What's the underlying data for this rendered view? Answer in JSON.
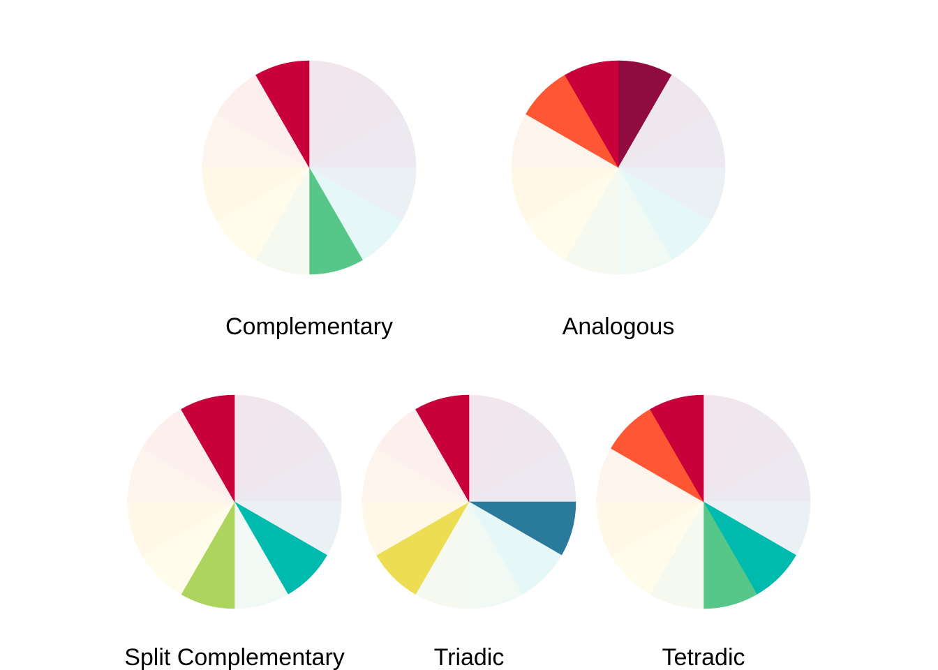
{
  "chart_data": [
    {
      "type": "pie",
      "label": "Complementary",
      "start": "top",
      "direction": "clockwise",
      "slices": [
        {
          "value": 1,
          "color": "#F1E6EC"
        },
        {
          "value": 1,
          "color": "#EEE8EE"
        },
        {
          "value": 1,
          "color": "#ECEAF0"
        },
        {
          "value": 1,
          "color": "#EAF0F3"
        },
        {
          "value": 1,
          "color": "#E6F7F7"
        },
        {
          "value": 1,
          "color": "#56C788"
        },
        {
          "value": 1,
          "color": "#F5F9EF"
        },
        {
          "value": 1,
          "color": "#FFFCEC"
        },
        {
          "value": 1,
          "color": "#FFF8E6"
        },
        {
          "value": 1,
          "color": "#FEF4EE"
        },
        {
          "value": 1,
          "color": "#FCEFEE"
        },
        {
          "value": 1,
          "color": "#C8013A"
        }
      ]
    },
    {
      "type": "pie",
      "label": "Analogous",
      "start": "top",
      "direction": "clockwise",
      "slices": [
        {
          "value": 1,
          "color": "#900C3F"
        },
        {
          "value": 1,
          "color": "#EEE8EE"
        },
        {
          "value": 1,
          "color": "#ECEAF0"
        },
        {
          "value": 1,
          "color": "#EAF0F3"
        },
        {
          "value": 1,
          "color": "#E6F7F7"
        },
        {
          "value": 1,
          "color": "#F0F9F3"
        },
        {
          "value": 1,
          "color": "#F5F9EF"
        },
        {
          "value": 1,
          "color": "#FFFCEC"
        },
        {
          "value": 1,
          "color": "#FFF8E6"
        },
        {
          "value": 1,
          "color": "#FEF4EE"
        },
        {
          "value": 1,
          "color": "#FF5733"
        },
        {
          "value": 1,
          "color": "#C8013A"
        }
      ]
    },
    {
      "type": "pie",
      "label": "Split Complementary",
      "start": "top",
      "direction": "clockwise",
      "slices": [
        {
          "value": 1,
          "color": "#F1E6EC"
        },
        {
          "value": 1,
          "color": "#EEE8EE"
        },
        {
          "value": 1,
          "color": "#ECEAF0"
        },
        {
          "value": 1,
          "color": "#EAF0F3"
        },
        {
          "value": 1,
          "color": "#00BAAD"
        },
        {
          "value": 1,
          "color": "#F0F9F3"
        },
        {
          "value": 1,
          "color": "#ADD45C"
        },
        {
          "value": 1,
          "color": "#FFFCEC"
        },
        {
          "value": 1,
          "color": "#FFF8E6"
        },
        {
          "value": 1,
          "color": "#FEF4EE"
        },
        {
          "value": 1,
          "color": "#FCEFEE"
        },
        {
          "value": 1,
          "color": "#C8013A"
        }
      ]
    },
    {
      "type": "pie",
      "label": "Triadic",
      "start": "top",
      "direction": "clockwise",
      "slices": [
        {
          "value": 1,
          "color": "#F1E6EC"
        },
        {
          "value": 1,
          "color": "#EEE8EE"
        },
        {
          "value": 1,
          "color": "#ECEAF0"
        },
        {
          "value": 1,
          "color": "#2A7B9B"
        },
        {
          "value": 1,
          "color": "#E6F7F7"
        },
        {
          "value": 1,
          "color": "#F0F9F3"
        },
        {
          "value": 1,
          "color": "#F5F9EF"
        },
        {
          "value": 1,
          "color": "#EDDD53"
        },
        {
          "value": 1,
          "color": "#FFF8E6"
        },
        {
          "value": 1,
          "color": "#FEF4EE"
        },
        {
          "value": 1,
          "color": "#FCEFEE"
        },
        {
          "value": 1,
          "color": "#C8013A"
        }
      ]
    },
    {
      "type": "pie",
      "label": "Tetradic",
      "start": "top",
      "direction": "clockwise",
      "slices": [
        {
          "value": 1,
          "color": "#F1E6EC"
        },
        {
          "value": 1,
          "color": "#EEE8EE"
        },
        {
          "value": 1,
          "color": "#ECEAF0"
        },
        {
          "value": 1,
          "color": "#EAF0F3"
        },
        {
          "value": 1,
          "color": "#00BAAD"
        },
        {
          "value": 1,
          "color": "#56C788"
        },
        {
          "value": 1,
          "color": "#F5F9EF"
        },
        {
          "value": 1,
          "color": "#FFFCEC"
        },
        {
          "value": 1,
          "color": "#FFF8E6"
        },
        {
          "value": 1,
          "color": "#FEF4EE"
        },
        {
          "value": 1,
          "color": "#FF5733"
        },
        {
          "value": 1,
          "color": "#C8013A"
        }
      ]
    }
  ]
}
